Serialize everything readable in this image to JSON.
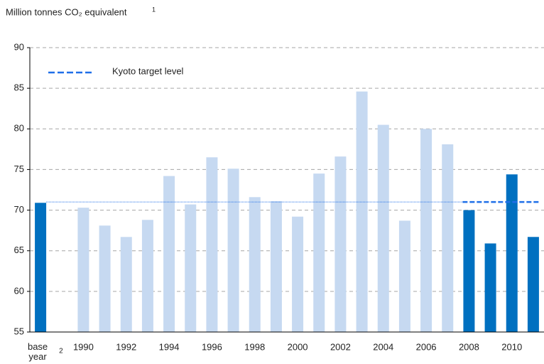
{
  "chart_data": {
    "type": "bar",
    "y_label": "Million tonnes CO₂ equivalent",
    "y_label_footnote": "1",
    "categories": [
      "base year",
      null,
      "1990",
      null,
      "1992",
      null,
      "1994",
      null,
      "1996",
      null,
      "1998",
      null,
      "2000",
      null,
      "2002",
      null,
      "2004",
      null,
      "2006",
      null,
      "2008",
      null,
      "2010",
      null
    ],
    "category_footnote": "2",
    "values": [
      70.9,
      null,
      70.3,
      68.1,
      66.7,
      68.8,
      74.2,
      70.7,
      76.5,
      75.1,
      71.6,
      71.1,
      69.2,
      74.5,
      76.6,
      84.6,
      80.5,
      68.7,
      80.0,
      78.1,
      70.0,
      65.9,
      74.4,
      66.7
    ],
    "colors": [
      "#0070c0",
      null,
      "#c6d9f1",
      "#c6d9f1",
      "#c6d9f1",
      "#c6d9f1",
      "#c6d9f1",
      "#c6d9f1",
      "#c6d9f1",
      "#c6d9f1",
      "#c6d9f1",
      "#c6d9f1",
      "#c6d9f1",
      "#c6d9f1",
      "#c6d9f1",
      "#c6d9f1",
      "#c6d9f1",
      "#c6d9f1",
      "#c6d9f1",
      "#c6d9f1",
      "#0070c0",
      "#0070c0",
      "#0070c0",
      "#0070c0"
    ],
    "reference_line": {
      "name": "Kyoto target level",
      "value": 71,
      "color": "#1f6fe8"
    },
    "ylim": [
      55,
      90
    ],
    "yticks": [
      55,
      60,
      65,
      70,
      75,
      80,
      85,
      90
    ],
    "grid": true
  }
}
